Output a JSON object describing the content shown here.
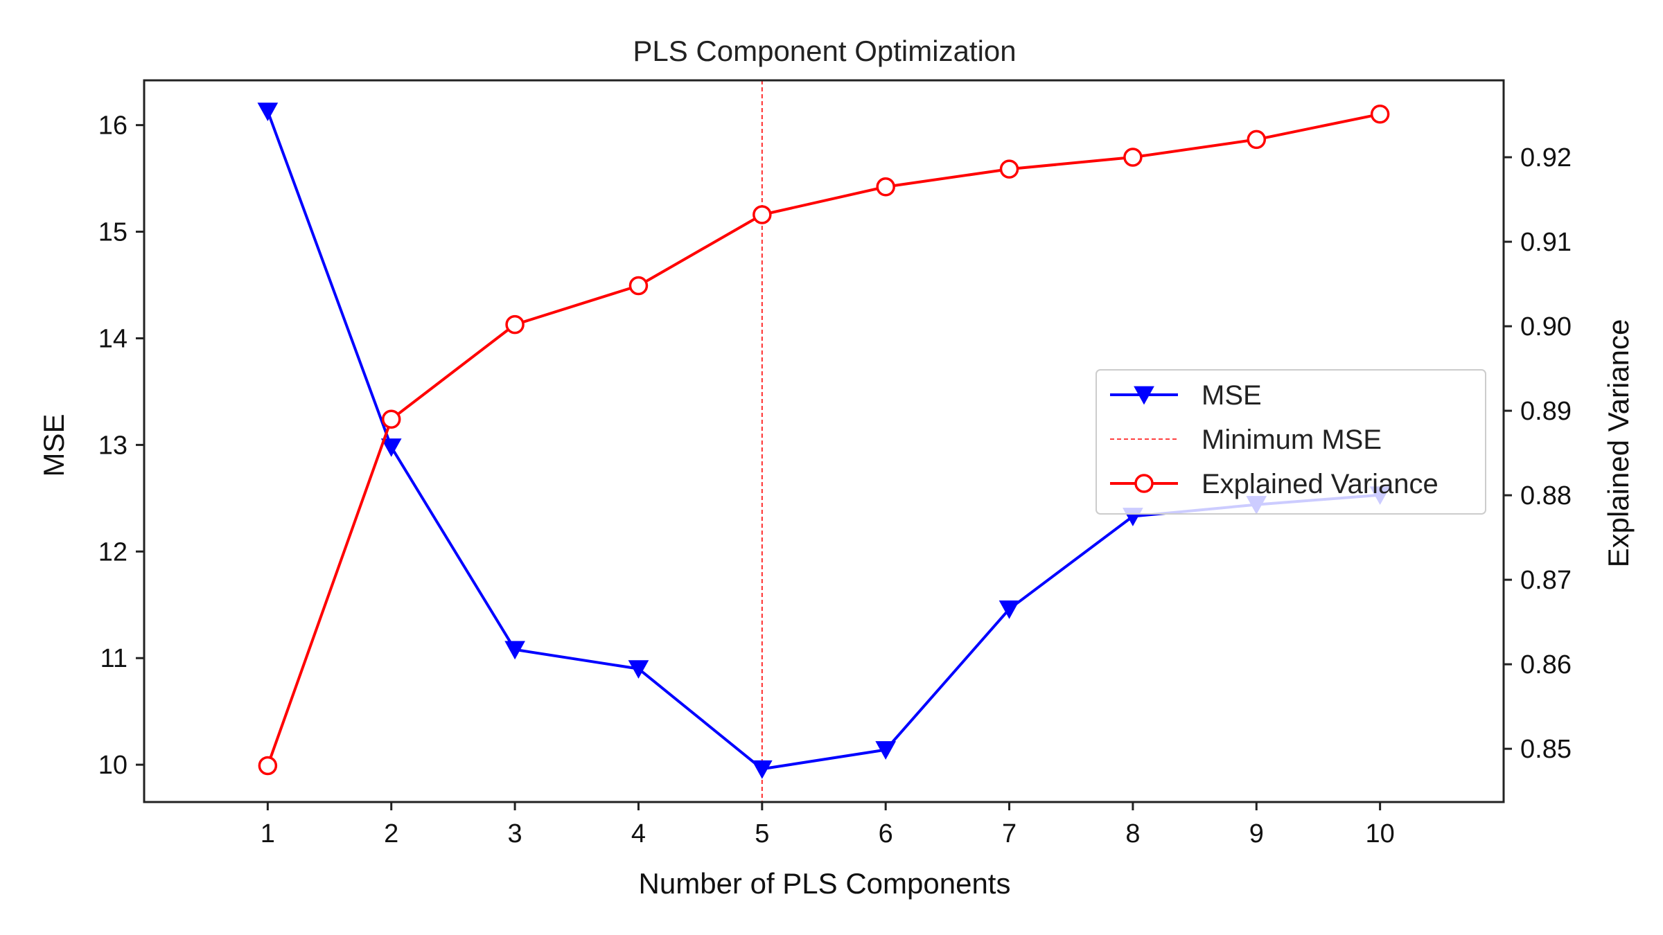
{
  "chart_data": {
    "type": "line",
    "title": "PLS Component Optimization",
    "xlabel": "Number of PLS Components",
    "ylabel": "MSE",
    "y2label": "Explained Variance",
    "x": [
      1,
      2,
      3,
      4,
      5,
      6,
      7,
      8,
      9,
      10
    ],
    "xlim": [
      0,
      11
    ],
    "ylim": [
      9.65,
      16.42
    ],
    "y2lim": [
      0.8437,
      0.9291
    ],
    "xticks": [
      1,
      2,
      3,
      4,
      5,
      6,
      7,
      8,
      9,
      10
    ],
    "yticks": [
      10,
      11,
      12,
      13,
      14,
      15,
      16
    ],
    "y2ticks": [
      0.85,
      0.86,
      0.87,
      0.88,
      0.89,
      0.9,
      0.91,
      0.92
    ],
    "y2tick_labels": [
      "0.85",
      "0.86",
      "0.87",
      "0.88",
      "0.89",
      "0.90",
      "0.91",
      "0.92"
    ],
    "series": [
      {
        "name": "MSE",
        "axis": "left",
        "color": "#0000ff",
        "marker": "triangle-down",
        "values": [
          16.13,
          12.98,
          11.08,
          10.9,
          9.96,
          10.14,
          11.46,
          12.33,
          12.44,
          12.53
        ]
      },
      {
        "name": "Explained Variance",
        "axis": "right",
        "color": "#ff0000",
        "marker": "open-circle",
        "values": [
          0.848,
          0.889,
          0.9002,
          0.9048,
          0.9132,
          0.9165,
          0.9186,
          0.92,
          0.9221,
          0.9251
        ]
      }
    ],
    "vline": {
      "name": "Minimum MSE",
      "x": 5,
      "color": "#ff0000",
      "style": "dashed"
    },
    "legend": {
      "placement": "center-right",
      "entries": [
        "MSE",
        "Minimum MSE",
        "Explained Variance"
      ]
    },
    "grid": false
  }
}
